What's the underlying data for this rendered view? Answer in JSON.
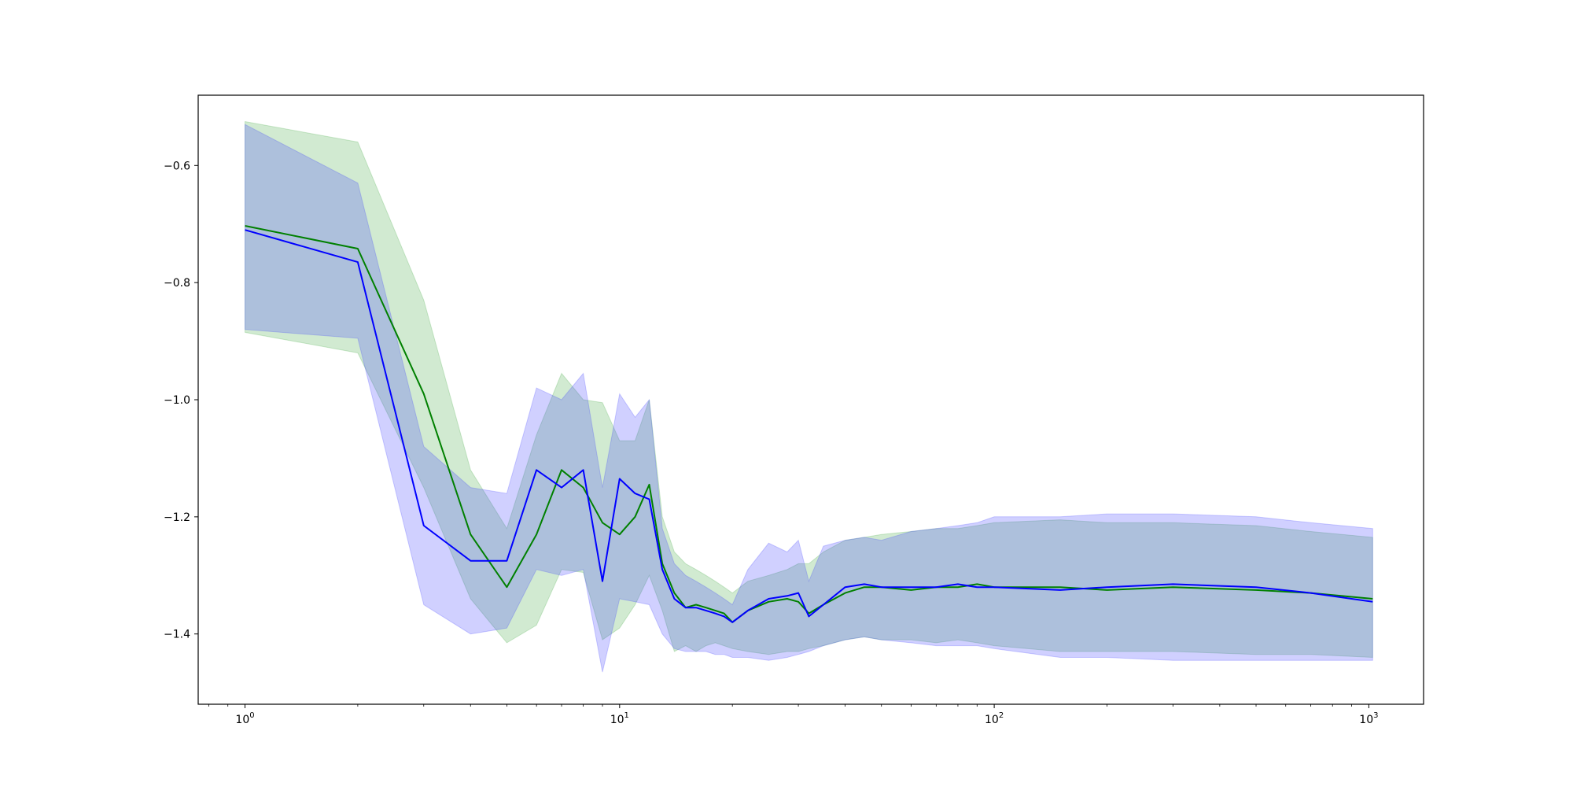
{
  "chart_data": {
    "type": "line",
    "title": "",
    "xlabel": "",
    "ylabel": "",
    "xscale": "log",
    "xlim": [
      0.75,
      1400
    ],
    "ylim": [
      -1.52,
      -0.48
    ],
    "grid": false,
    "legend": "none",
    "x_ticks": [
      {
        "value": 1,
        "base": "10",
        "exp": "0"
      },
      {
        "value": 10,
        "base": "10",
        "exp": "1"
      },
      {
        "value": 100,
        "base": "10",
        "exp": "2"
      },
      {
        "value": 1000,
        "base": "10",
        "exp": "3"
      }
    ],
    "y_ticks": [
      {
        "value": -1.4,
        "label": "−1.4"
      },
      {
        "value": -1.2,
        "label": "−1.2"
      },
      {
        "value": -1.0,
        "label": "−1.0"
      },
      {
        "value": -0.8,
        "label": "−0.8"
      },
      {
        "value": -0.6,
        "label": "−0.6"
      }
    ],
    "series": [
      {
        "color": "#008000",
        "band_color": "#2ca02c",
        "band_opacity": 0.22,
        "x": [
          1,
          2,
          3,
          4,
          5,
          6,
          7,
          8,
          9,
          10,
          11,
          12,
          13,
          14,
          15,
          16,
          17,
          18,
          19,
          20,
          22,
          25,
          28,
          30,
          32,
          35,
          40,
          45,
          50,
          60,
          70,
          80,
          90,
          100,
          150,
          200,
          300,
          500,
          700,
          1024
        ],
        "y": [
          -0.703,
          -0.742,
          -0.99,
          -1.23,
          -1.32,
          -1.23,
          -1.12,
          -1.15,
          -1.21,
          -1.23,
          -1.2,
          -1.145,
          -1.28,
          -1.33,
          -1.355,
          -1.35,
          -1.355,
          -1.36,
          -1.365,
          -1.38,
          -1.36,
          -1.345,
          -1.34,
          -1.345,
          -1.365,
          -1.35,
          -1.33,
          -1.32,
          -1.32,
          -1.325,
          -1.32,
          -1.32,
          -1.315,
          -1.32,
          -1.32,
          -1.325,
          -1.32,
          -1.325,
          -1.33,
          -1.34
        ],
        "upper": [
          -0.525,
          -0.56,
          -0.83,
          -1.12,
          -1.22,
          -1.06,
          -0.955,
          -1.0,
          -1.005,
          -1.07,
          -1.07,
          -1.0,
          -1.2,
          -1.26,
          -1.28,
          -1.29,
          -1.3,
          -1.31,
          -1.32,
          -1.33,
          -1.31,
          -1.3,
          -1.29,
          -1.28,
          -1.28,
          -1.26,
          -1.24,
          -1.235,
          -1.23,
          -1.225,
          -1.22,
          -1.22,
          -1.215,
          -1.21,
          -1.205,
          -1.21,
          -1.21,
          -1.215,
          -1.225,
          -1.235
        ],
        "lower": [
          -0.885,
          -0.92,
          -1.15,
          -1.34,
          -1.415,
          -1.385,
          -1.29,
          -1.295,
          -1.41,
          -1.39,
          -1.35,
          -1.3,
          -1.36,
          -1.43,
          -1.42,
          -1.43,
          -1.42,
          -1.415,
          -1.42,
          -1.425,
          -1.43,
          -1.435,
          -1.43,
          -1.43,
          -1.425,
          -1.42,
          -1.41,
          -1.405,
          -1.41,
          -1.41,
          -1.415,
          -1.41,
          -1.415,
          -1.42,
          -1.43,
          -1.43,
          -1.43,
          -1.435,
          -1.435,
          -1.44
        ]
      },
      {
        "color": "#0000ff",
        "band_color": "#3b3bff",
        "band_opacity": 0.24,
        "x": [
          1,
          2,
          3,
          4,
          5,
          6,
          7,
          8,
          9,
          10,
          11,
          12,
          13,
          14,
          15,
          16,
          17,
          18,
          19,
          20,
          22,
          25,
          28,
          30,
          32,
          35,
          40,
          45,
          50,
          60,
          70,
          80,
          90,
          100,
          150,
          200,
          300,
          500,
          700,
          1024
        ],
        "y": [
          -0.71,
          -0.765,
          -1.215,
          -1.275,
          -1.275,
          -1.12,
          -1.15,
          -1.12,
          -1.31,
          -1.135,
          -1.16,
          -1.17,
          -1.29,
          -1.34,
          -1.355,
          -1.355,
          -1.36,
          -1.365,
          -1.37,
          -1.38,
          -1.36,
          -1.34,
          -1.335,
          -1.33,
          -1.37,
          -1.35,
          -1.32,
          -1.315,
          -1.32,
          -1.32,
          -1.32,
          -1.315,
          -1.32,
          -1.32,
          -1.325,
          -1.32,
          -1.315,
          -1.32,
          -1.33,
          -1.345
        ],
        "upper": [
          -0.53,
          -0.63,
          -1.08,
          -1.15,
          -1.16,
          -0.98,
          -1.0,
          -0.955,
          -1.15,
          -0.99,
          -1.03,
          -1.0,
          -1.22,
          -1.28,
          -1.3,
          -1.31,
          -1.32,
          -1.33,
          -1.34,
          -1.35,
          -1.29,
          -1.245,
          -1.26,
          -1.24,
          -1.31,
          -1.25,
          -1.24,
          -1.235,
          -1.24,
          -1.225,
          -1.22,
          -1.215,
          -1.21,
          -1.2,
          -1.2,
          -1.195,
          -1.195,
          -1.2,
          -1.21,
          -1.22
        ],
        "lower": [
          -0.88,
          -0.895,
          -1.35,
          -1.4,
          -1.39,
          -1.29,
          -1.3,
          -1.29,
          -1.465,
          -1.34,
          -1.345,
          -1.35,
          -1.4,
          -1.425,
          -1.43,
          -1.43,
          -1.43,
          -1.435,
          -1.435,
          -1.44,
          -1.44,
          -1.445,
          -1.44,
          -1.435,
          -1.43,
          -1.42,
          -1.41,
          -1.405,
          -1.41,
          -1.415,
          -1.42,
          -1.42,
          -1.42,
          -1.425,
          -1.44,
          -1.44,
          -1.445,
          -1.445,
          -1.445,
          -1.445
        ]
      }
    ]
  }
}
